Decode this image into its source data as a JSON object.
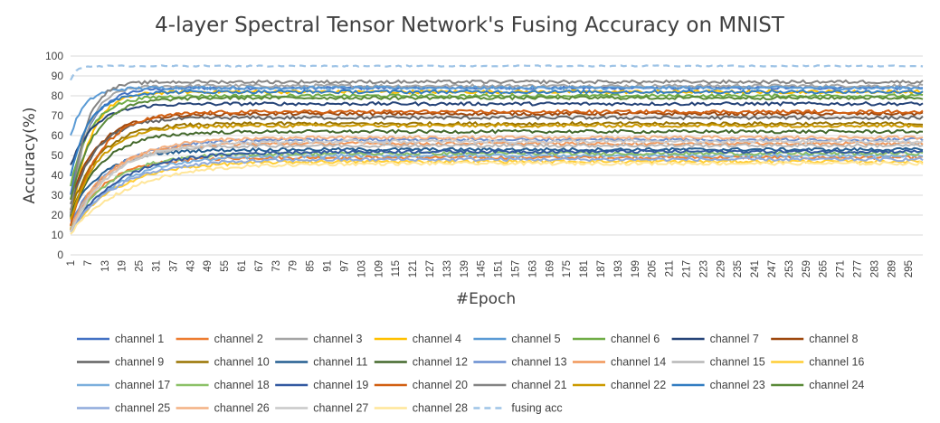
{
  "chart_data": {
    "type": "line",
    "title": "4-layer Spectral Tensor Network's Fusing Accuracy on MNIST",
    "xlabel": "#Epoch",
    "ylabel": "Accuracy(%)",
    "ylim": [
      0,
      100
    ],
    "yticks": [
      0,
      10,
      20,
      30,
      40,
      50,
      60,
      70,
      80,
      90,
      100
    ],
    "xlim": [
      1,
      300
    ],
    "xtick_start": 1,
    "xtick_step": 6,
    "xtick_end": 295,
    "grid": true,
    "legend_position": "bottom",
    "legend_columns": 8,
    "series": [
      {
        "name": "channel 1",
        "color": "#4472c4",
        "start": 30,
        "plateau": 84,
        "rate": 0.15,
        "dash": false
      },
      {
        "name": "channel 2",
        "color": "#ed7d31",
        "start": 14,
        "plateau": 49,
        "rate": 0.08,
        "dash": false
      },
      {
        "name": "channel 3",
        "color": "#a5a5a5",
        "start": 18,
        "plateau": 85,
        "rate": 0.18,
        "dash": false
      },
      {
        "name": "channel 4",
        "color": "#ffc000",
        "start": 12,
        "plateau": 82,
        "rate": 0.16,
        "dash": false
      },
      {
        "name": "channel 5",
        "color": "#5b9bd5",
        "start": 60,
        "plateau": 84,
        "rate": 0.2,
        "dash": false
      },
      {
        "name": "channel 6",
        "color": "#70ad47",
        "start": 35,
        "plateau": 80,
        "rate": 0.14,
        "dash": false
      },
      {
        "name": "channel 7",
        "color": "#264478",
        "start": 45,
        "plateau": 76,
        "rate": 0.12,
        "dash": false
      },
      {
        "name": "channel 8",
        "color": "#9e480e",
        "start": 28,
        "plateau": 71,
        "rate": 0.1,
        "dash": false
      },
      {
        "name": "channel 9",
        "color": "#636363",
        "start": 25,
        "plateau": 69,
        "rate": 0.11,
        "dash": false
      },
      {
        "name": "channel 10",
        "color": "#997300",
        "start": 22,
        "plateau": 66,
        "rate": 0.1,
        "dash": false
      },
      {
        "name": "channel 11",
        "color": "#255e91",
        "start": 20,
        "plateau": 53,
        "rate": 0.09,
        "dash": false
      },
      {
        "name": "channel 12",
        "color": "#43682b",
        "start": 20,
        "plateau": 62,
        "rate": 0.09,
        "dash": false
      },
      {
        "name": "channel 13",
        "color": "#698ed0",
        "start": 16,
        "plateau": 58,
        "rate": 0.07,
        "dash": false
      },
      {
        "name": "channel 14",
        "color": "#f1975a",
        "start": 14,
        "plateau": 56,
        "rate": 0.08,
        "dash": false
      },
      {
        "name": "channel 15",
        "color": "#b7b7b7",
        "start": 13,
        "plateau": 55,
        "rate": 0.08,
        "dash": false
      },
      {
        "name": "channel 16",
        "color": "#ffcd33",
        "start": 12,
        "plateau": 47,
        "rate": 0.06,
        "dash": false
      },
      {
        "name": "channel 17",
        "color": "#7cafdd",
        "start": 12,
        "plateau": 50,
        "rate": 0.06,
        "dash": false
      },
      {
        "name": "channel 18",
        "color": "#8cc168",
        "start": 13,
        "plateau": 51,
        "rate": 0.07,
        "dash": false
      },
      {
        "name": "channel 19",
        "color": "#335aa1",
        "start": 12,
        "plateau": 52,
        "rate": 0.06,
        "dash": false
      },
      {
        "name": "channel 20",
        "color": "#d26012",
        "start": 15,
        "plateau": 72,
        "rate": 0.1,
        "dash": false
      },
      {
        "name": "channel 21",
        "color": "#848484",
        "start": 20,
        "plateau": 87,
        "rate": 0.2,
        "dash": false
      },
      {
        "name": "channel 22",
        "color": "#cc9a00",
        "start": 18,
        "plateau": 65,
        "rate": 0.1,
        "dash": false
      },
      {
        "name": "channel 23",
        "color": "#327dc2",
        "start": 40,
        "plateau": 82,
        "rate": 0.15,
        "dash": false
      },
      {
        "name": "channel 24",
        "color": "#5a8a39",
        "start": 28,
        "plateau": 79,
        "rate": 0.12,
        "dash": false
      },
      {
        "name": "channel 25",
        "color": "#8faadc",
        "start": 12,
        "plateau": 48,
        "rate": 0.06,
        "dash": false
      },
      {
        "name": "channel 26",
        "color": "#f4b183",
        "start": 12,
        "plateau": 59,
        "rate": 0.07,
        "dash": false
      },
      {
        "name": "channel 27",
        "color": "#c9c9c9",
        "start": 12,
        "plateau": 57,
        "rate": 0.07,
        "dash": false
      },
      {
        "name": "channel 28",
        "color": "#ffe699",
        "start": 11,
        "plateau": 46,
        "rate": 0.05,
        "dash": false
      },
      {
        "name": "fusing acc",
        "color": "#9dc3e6",
        "start": 88,
        "plateau": 95,
        "rate": 0.5,
        "dash": true
      }
    ]
  }
}
